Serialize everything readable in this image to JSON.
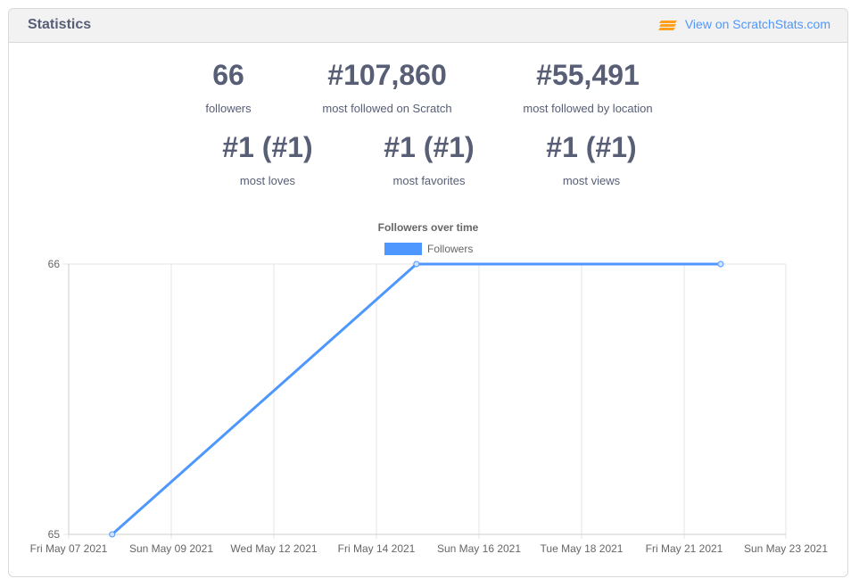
{
  "header": {
    "title": "Statistics",
    "link_label": "View on ScratchStats.com",
    "link_icon": "scratchstats-logo-icon"
  },
  "stats_row1": [
    {
      "value": "66",
      "label": "followers"
    },
    {
      "value": "#107,860",
      "label": "most followed on Scratch"
    },
    {
      "value": "#55,491",
      "label": "most followed by location"
    }
  ],
  "stats_row2": [
    {
      "value": "#1 (#1)",
      "label": "most loves"
    },
    {
      "value": "#1 (#1)",
      "label": "most favorites"
    },
    {
      "value": "#1 (#1)",
      "label": "most views"
    }
  ],
  "colors": {
    "accent": "#4d97ff",
    "line": "#4d97ff",
    "text": "#575e75",
    "logo": "#ff9f1c"
  },
  "chart_data": {
    "type": "line",
    "title": "Followers over time",
    "legend": {
      "label": "Followers",
      "placement": "top"
    },
    "x_ticks": [
      "Fri May 07 2021",
      "Sun May 09 2021",
      "Wed May 12 2021",
      "Fri May 14 2021",
      "Sun May 16 2021",
      "Tue May 18 2021",
      "Fri May 21 2021",
      "Sun May 23 2021"
    ],
    "y_ticks": [
      65,
      66
    ],
    "ylim": [
      65,
      66
    ],
    "grid": true,
    "series": [
      {
        "name": "Followers",
        "x": [
          "May 08 2021",
          "May 15 2021",
          "May 22 2021"
        ],
        "values": [
          65,
          66,
          66
        ]
      }
    ]
  }
}
